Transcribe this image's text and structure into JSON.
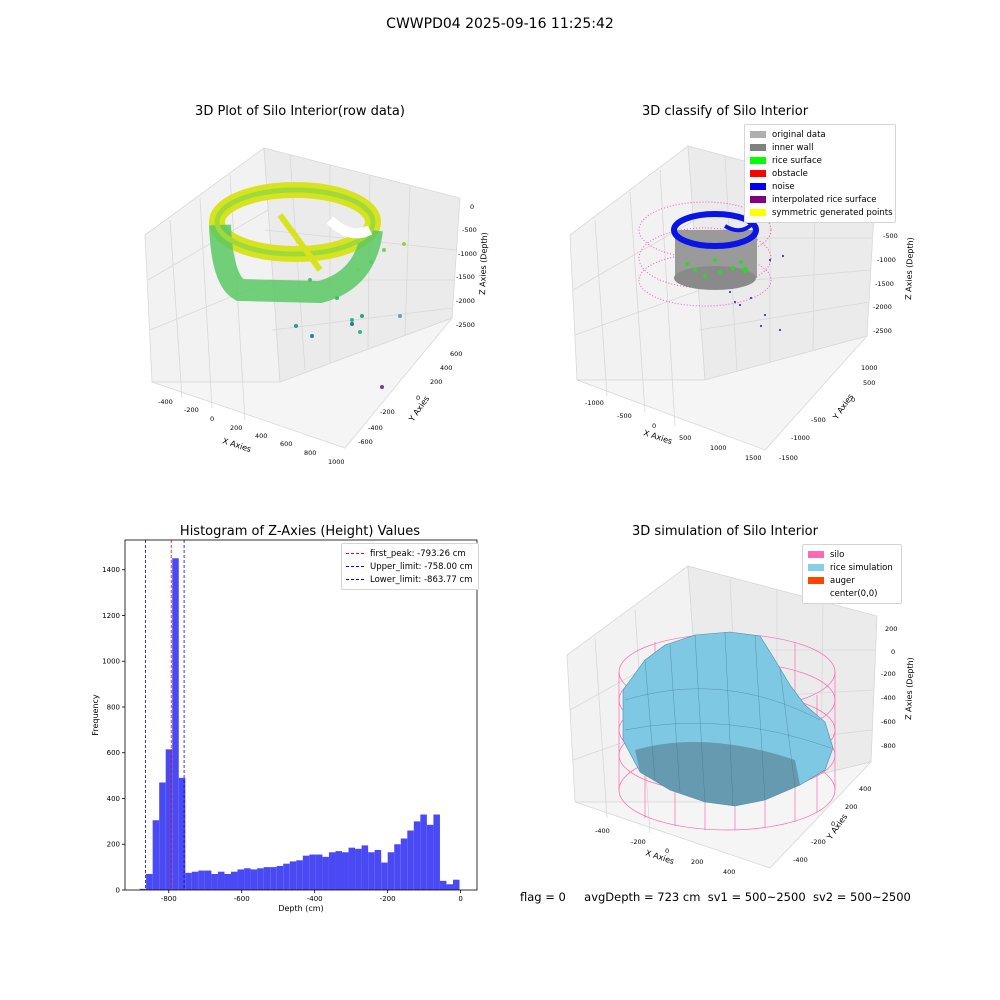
{
  "figure_title": "CWWPD04 2025-09-16 11:25:42",
  "status_line": {
    "flag": "flag = 0",
    "avg_depth": "avgDepth = 723 cm",
    "sv1": "sv1 = 500~2500",
    "sv2": "sv2 = 500~2500"
  },
  "chart_data": [
    {
      "type": "scatter",
      "projection": "3d",
      "title": "3D Plot of Silo Interior(row data)",
      "xlabel": "X Axies",
      "ylabel": "Y Axies",
      "zlabel": "Z Axies (Depth)",
      "x_ticks": [
        "-400",
        "-200",
        "0",
        "200",
        "400",
        "600",
        "800",
        "1000"
      ],
      "y_ticks": [
        "-600",
        "-400",
        "-200",
        "0",
        "200",
        "400",
        "600"
      ],
      "z_ticks": [
        "0",
        "-500",
        "-1000",
        "-1500",
        "-2000",
        "-2500"
      ],
      "colormap": "viridis",
      "shape": "ring of points, radius about 300, depth -200 to -1100, with scattered outliers down to -2500"
    },
    {
      "type": "scatter",
      "projection": "3d",
      "title": "3D classify of Silo Interior",
      "xlabel": "X Axies",
      "ylabel": "Y Axies",
      "zlabel": "Z Axies (Depth)",
      "x_ticks": [
        "-1000",
        "-500",
        "0",
        "500",
        "1000",
        "1500"
      ],
      "y_ticks": [
        "-1500",
        "-1000",
        "-500",
        "0",
        "500",
        "1000"
      ],
      "z_ticks": [
        "-500",
        "-1000",
        "-1500",
        "-2000",
        "-2500"
      ],
      "legend_position": "top-right",
      "legend": [
        {
          "label": "original data",
          "color": "#b0b0b0"
        },
        {
          "label": "inner wall",
          "color": "#808080"
        },
        {
          "label": "rice surface",
          "color": "#00ff00"
        },
        {
          "label": "obstacle",
          "color": "#ff0000"
        },
        {
          "label": "noise",
          "color": "#0000ff"
        },
        {
          "label": "interpolated rice surface",
          "color": "#800080"
        },
        {
          "label": "symmetric generated points",
          "color": "#ffff00"
        }
      ]
    },
    {
      "type": "bar",
      "title": "Histogram of Z-Axies (Height) Values",
      "xlabel": "Depth (cm)",
      "ylabel": "Frequency",
      "xlim": [
        -920,
        45
      ],
      "ylim": [
        0,
        1530
      ],
      "x_ticks": [
        -800,
        -600,
        -400,
        -200,
        0
      ],
      "y_ticks": [
        0,
        200,
        400,
        600,
        800,
        1000,
        1200,
        1400
      ],
      "bar_color": "#4a4af5",
      "bin_start": -880,
      "bin_width": 17.9,
      "values": [
        5,
        70,
        305,
        470,
        615,
        1450,
        490,
        75,
        80,
        85,
        85,
        70,
        80,
        70,
        80,
        90,
        95,
        90,
        95,
        100,
        100,
        105,
        115,
        125,
        130,
        150,
        155,
        155,
        145,
        165,
        170,
        165,
        185,
        180,
        195,
        165,
        175,
        120,
        165,
        200,
        225,
        260,
        300,
        330,
        285,
        330,
        40,
        25,
        45
      ],
      "vlines": [
        {
          "label": "first_peak: -793.26 cm",
          "x": -793.26,
          "color": "#ff0000"
        },
        {
          "label": "Upper_limit: -758.00 cm",
          "x": -758.0,
          "color": "#0000ff"
        },
        {
          "label": "Lower_limit: -863.77 cm",
          "x": -863.77,
          "color": "#0000ff"
        }
      ],
      "legend_position": "top-right"
    },
    {
      "type": "surface",
      "projection": "3d",
      "title": "3D simulation of Silo Interior",
      "xlabel": "X Axies",
      "ylabel": "Y Axies",
      "zlabel": "Z Axies (Depth)",
      "x_ticks": [
        "-400",
        "-200",
        "0",
        "200",
        "400"
      ],
      "y_ticks": [
        "-400",
        "-200",
        "0",
        "200",
        "400"
      ],
      "z_ticks": [
        "200",
        "0",
        "-200",
        "-400",
        "-600",
        "-800"
      ],
      "legend_position": "top-right",
      "legend": [
        {
          "label": "silo",
          "color": "#ff69b4"
        },
        {
          "label": "rice simulation",
          "color": "#87ceeb"
        },
        {
          "label": "auger",
          "color": "#ff4500"
        },
        {
          "label": "center(0,0)",
          "color": ""
        }
      ]
    }
  ]
}
